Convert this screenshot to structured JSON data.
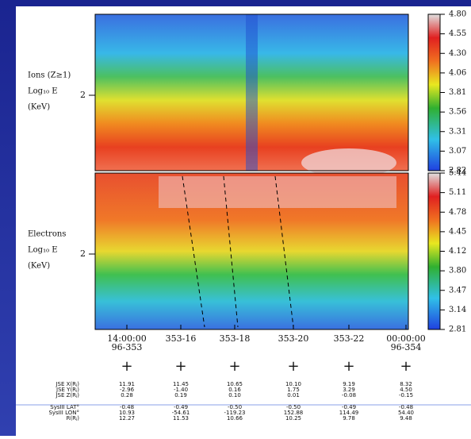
{
  "panels": [
    {
      "label": [
        "Ions (Z≥1)",
        "Log₁₀ E",
        "(KeV)"
      ],
      "ytick": "2",
      "colorbar": [
        "4.80",
        "4.55",
        "4.30",
        "4.06",
        "3.81",
        "3.56",
        "3.31",
        "3.07",
        "2.82"
      ]
    },
    {
      "label": [
        "Electrons",
        "Log₁₀ E",
        "(KeV)"
      ],
      "ytick": "2",
      "colorbar": [
        "5.44",
        "5.11",
        "4.78",
        "4.45",
        "4.12",
        "3.80",
        "3.47",
        "3.14",
        "2.81"
      ]
    }
  ],
  "xticks": [
    [
      "14:00:00",
      "96-353"
    ],
    [
      "353-16"
    ],
    [
      "353-18"
    ],
    [
      "353-20"
    ],
    [
      "353-22"
    ],
    [
      "00:00:00",
      "96-354"
    ]
  ],
  "table": {
    "labels": [
      "JSE X(Rⱼ)",
      "JSE Y(Rⱼ)",
      "JSE Z(Rⱼ)",
      "SysIII LAT°",
      "SysIII LON°",
      "R(Rⱼ)"
    ],
    "rows": [
      [
        "11.91",
        "11.45",
        "10.65",
        "10.10",
        "9.19",
        "8.32"
      ],
      [
        "-2.96",
        "-1.40",
        "0.16",
        "1.75",
        "3.29",
        "4.50"
      ],
      [
        "0.28",
        "0.19",
        "0.10",
        "0.01",
        "-0.08",
        "-0.15"
      ],
      [
        "-0.48",
        "-0.49",
        "-0.50",
        "-0.50",
        "-0.49",
        "-0.48"
      ],
      [
        "10.93",
        "-54.61",
        "-119.23",
        "152.88",
        "114.49",
        "54.40"
      ],
      [
        "12.27",
        "11.53",
        "10.66",
        "10.25",
        "9.78",
        "9.48"
      ]
    ]
  }
}
